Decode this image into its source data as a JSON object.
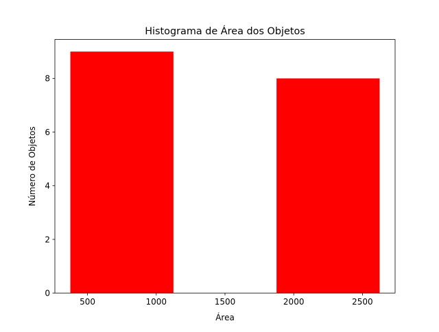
{
  "chart_data": {
    "type": "bar",
    "title": "Histograma de Área dos Objetos",
    "xlabel": "Área",
    "ylabel": "Número de Objetos",
    "bars": [
      {
        "x_start": 375,
        "x_end": 1125,
        "value": 9
      },
      {
        "x_start": 1875,
        "x_end": 2625,
        "value": 8
      }
    ],
    "xlim": [
      262.5,
      2737.5
    ],
    "ylim": [
      0,
      9.45
    ],
    "xticks": [
      500,
      1000,
      1500,
      2000,
      2500
    ],
    "yticks": [
      0,
      2,
      4,
      6,
      8
    ],
    "bar_color": "#ff0000",
    "grid": false,
    "legend": "none"
  }
}
